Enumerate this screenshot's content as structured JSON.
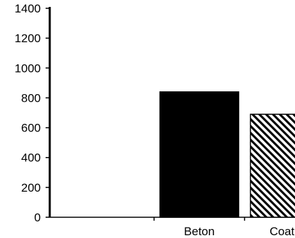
{
  "chart_data": {
    "type": "bar",
    "categories": [
      "",
      "Beton",
      "Coating"
    ],
    "values": [
      null,
      840,
      690
    ],
    "ylim": [
      0,
      1400
    ],
    "yticks": [
      "0",
      "200",
      "400",
      "600",
      "800",
      "1000",
      "1200",
      "1400"
    ],
    "ytick_values": [
      0,
      200,
      400,
      600,
      800,
      1000,
      1200,
      1400
    ],
    "grid": false,
    "colors": {
      "axis": "#000000",
      "bar_solid": "#000000",
      "bar_hatch_bg": "#ffffff",
      "bar_hatch_fg": "#000000"
    },
    "bar_styles": [
      "none",
      "solid",
      "hatched"
    ]
  }
}
